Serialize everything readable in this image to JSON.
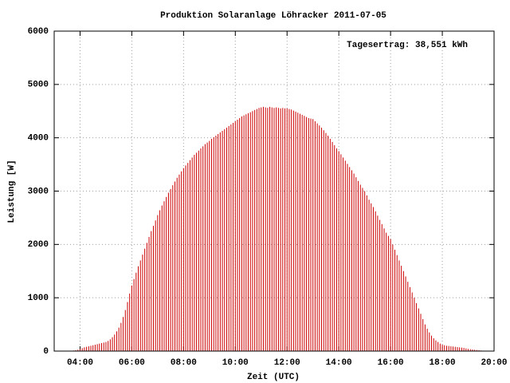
{
  "chart_data": {
    "type": "impulses",
    "title": "Produktion Solaranlage Löhracker 2011-07-05",
    "xlabel": "Zeit (UTC)",
    "ylabel": "Leistung [W]",
    "annotation": "Tagesertrag: 38,551 kWh",
    "color": "#cc0000",
    "grid": true,
    "xlim": [
      "03:00",
      "20:00"
    ],
    "xticks": [
      "04:00",
      "06:00",
      "08:00",
      "10:00",
      "12:00",
      "14:00",
      "16:00",
      "18:00",
      "20:00"
    ],
    "ylim": [
      0,
      6000
    ],
    "yticks": [
      0,
      1000,
      2000,
      3000,
      4000,
      5000,
      6000
    ],
    "x": [
      "03:40",
      "03:45",
      "03:50",
      "03:55",
      "04:00",
      "04:05",
      "04:10",
      "04:15",
      "04:20",
      "04:25",
      "04:30",
      "04:35",
      "04:40",
      "04:45",
      "04:50",
      "04:55",
      "05:00",
      "05:05",
      "05:10",
      "05:15",
      "05:20",
      "05:25",
      "05:30",
      "05:35",
      "05:40",
      "05:45",
      "05:50",
      "05:55",
      "06:00",
      "06:05",
      "06:10",
      "06:15",
      "06:20",
      "06:25",
      "06:30",
      "06:35",
      "06:40",
      "06:45",
      "06:50",
      "06:55",
      "07:00",
      "07:05",
      "07:10",
      "07:15",
      "07:20",
      "07:25",
      "07:30",
      "07:35",
      "07:40",
      "07:45",
      "07:50",
      "07:55",
      "08:00",
      "08:05",
      "08:10",
      "08:15",
      "08:20",
      "08:25",
      "08:30",
      "08:35",
      "08:40",
      "08:45",
      "08:50",
      "08:55",
      "09:00",
      "09:05",
      "09:10",
      "09:15",
      "09:20",
      "09:25",
      "09:30",
      "09:35",
      "09:40",
      "09:45",
      "09:50",
      "09:55",
      "10:00",
      "10:05",
      "10:10",
      "10:15",
      "10:20",
      "10:25",
      "10:30",
      "10:35",
      "10:40",
      "10:45",
      "10:50",
      "10:55",
      "11:00",
      "11:05",
      "11:10",
      "11:15",
      "11:20",
      "11:25",
      "11:30",
      "11:35",
      "11:40",
      "11:45",
      "11:50",
      "11:55",
      "12:00",
      "12:05",
      "12:10",
      "12:15",
      "12:20",
      "12:25",
      "12:30",
      "12:35",
      "12:40",
      "12:45",
      "12:50",
      "12:55",
      "13:00",
      "13:05",
      "13:10",
      "13:15",
      "13:20",
      "13:25",
      "13:30",
      "13:35",
      "13:40",
      "13:45",
      "13:50",
      "13:55",
      "14:00",
      "14:05",
      "14:10",
      "14:15",
      "14:20",
      "14:25",
      "14:30",
      "14:35",
      "14:40",
      "14:45",
      "14:50",
      "14:55",
      "15:00",
      "15:05",
      "15:10",
      "15:15",
      "15:20",
      "15:25",
      "15:30",
      "15:35",
      "15:40",
      "15:45",
      "15:50",
      "15:55",
      "16:00",
      "16:05",
      "16:10",
      "16:15",
      "16:20",
      "16:25",
      "16:30",
      "16:35",
      "16:40",
      "16:45",
      "16:50",
      "16:55",
      "17:00",
      "17:05",
      "17:10",
      "17:15",
      "17:20",
      "17:25",
      "17:30",
      "17:35",
      "17:40",
      "17:45",
      "17:50",
      "17:55",
      "18:00",
      "18:05",
      "18:10",
      "18:15",
      "18:20",
      "18:25",
      "18:30",
      "18:35",
      "18:40",
      "18:45",
      "18:50",
      "18:55",
      "19:00",
      "19:05",
      "19:10",
      "19:15",
      "19:20",
      "19:25",
      "19:30",
      "19:35",
      "19:40"
    ],
    "values": [
      5,
      10,
      15,
      25,
      40,
      55,
      70,
      80,
      90,
      100,
      110,
      120,
      130,
      140,
      150,
      160,
      170,
      190,
      220,
      260,
      310,
      370,
      440,
      530,
      640,
      770,
      920,
      1080,
      1230,
      1350,
      1470,
      1590,
      1700,
      1810,
      1920,
      2030,
      2140,
      2250,
      2350,
      2450,
      2550,
      2640,
      2730,
      2810,
      2890,
      2970,
      3040,
      3110,
      3180,
      3250,
      3310,
      3370,
      3430,
      3480,
      3530,
      3580,
      3630,
      3680,
      3720,
      3760,
      3800,
      3840,
      3880,
      3910,
      3940,
      3980,
      4010,
      4040,
      4070,
      4100,
      4130,
      4160,
      4190,
      4220,
      4250,
      4280,
      4310,
      4340,
      4370,
      4400,
      4420,
      4440,
      4460,
      4480,
      4500,
      4520,
      4540,
      4560,
      4570,
      4580,
      4570,
      4560,
      4580,
      4570,
      4560,
      4570,
      4560,
      4550,
      4560,
      4550,
      4550,
      4540,
      4530,
      4510,
      4490,
      4470,
      4450,
      4430,
      4410,
      4390,
      4370,
      4360,
      4350,
      4310,
      4270,
      4230,
      4190,
      4140,
      4090,
      4040,
      3980,
      3920,
      3860,
      3800,
      3750,
      3690,
      3630,
      3570,
      3510,
      3450,
      3390,
      3330,
      3260,
      3190,
      3120,
      3060,
      3000,
      2920,
      2840,
      2770,
      2700,
      2620,
      2540,
      2460,
      2380,
      2300,
      2220,
      2160,
      2100,
      2000,
      1900,
      1800,
      1700,
      1600,
      1500,
      1400,
      1300,
      1200,
      1100,
      1000,
      900,
      800,
      700,
      600,
      500,
      420,
      350,
      290,
      240,
      200,
      170,
      140,
      120,
      110,
      100,
      95,
      90,
      85,
      80,
      75,
      70,
      65,
      60,
      50,
      40,
      35,
      30,
      25,
      20,
      15,
      10,
      5,
      3
    ]
  }
}
